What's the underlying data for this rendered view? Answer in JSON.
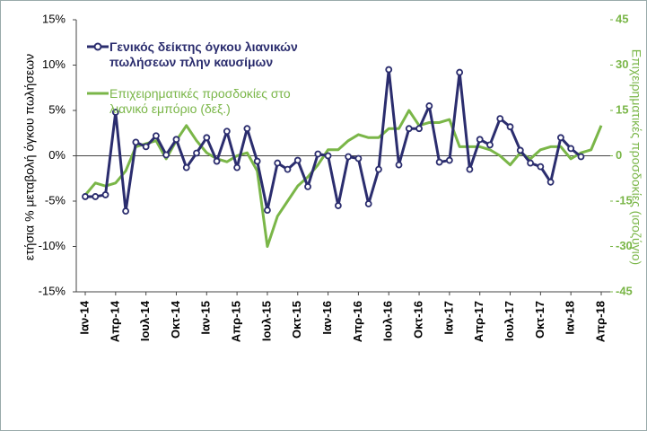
{
  "chart_data": {
    "type": "line",
    "y_label": "ετήσια % μεταβολή όγκου πωλήσεων",
    "y2_label": "Επιχειρηματικές προσδοκίες (ισοζύγιο)",
    "categories": [
      "Ιαν-14",
      null,
      null,
      "Απρ-14",
      null,
      null,
      "Ιουλ-14",
      null,
      null,
      "Οκτ-14",
      null,
      null,
      "Ιαν-15",
      null,
      null,
      "Απρ-15",
      null,
      null,
      "Ιουλ-15",
      null,
      null,
      "Οκτ-15",
      null,
      null,
      "Ιαν-16",
      null,
      null,
      "Απρ-16",
      null,
      null,
      "Ιουλ-16",
      null,
      null,
      "Οκτ-16",
      null,
      null,
      "Ιαν-17",
      null,
      null,
      "Απρ-17",
      null,
      null,
      "Ιουλ-17",
      null,
      null,
      "Οκτ-17",
      null,
      null,
      "Ιαν-18",
      null,
      null,
      "Απρ-18"
    ],
    "ylim": [
      -15,
      15
    ],
    "yticks": [
      {
        "value": -15,
        "label": "-15%"
      },
      {
        "value": -10,
        "label": "-10%"
      },
      {
        "value": -5,
        "label": "-5%"
      },
      {
        "value": 0,
        "label": "0%"
      },
      {
        "value": 5,
        "label": "5%"
      },
      {
        "value": 10,
        "label": "10%"
      },
      {
        "value": 15,
        "label": "15%"
      }
    ],
    "y2lim": [
      -45,
      45
    ],
    "y2ticks": [
      -45,
      -30,
      -15,
      0,
      15,
      30,
      45
    ],
    "legend": "top-left",
    "series": [
      {
        "name": "Γενικός δείκτης όγκου λιανικών πωλήσεων πλην καυσίμων",
        "color": "#2b2d6e",
        "markers": true,
        "values": [
          -4.5,
          -4.5,
          -4.3,
          4.8,
          -6.1,
          1.5,
          1.0,
          2.2,
          0.1,
          1.8,
          -1.3,
          0.3,
          2.0,
          -0.6,
          2.7,
          -1.3,
          3.0,
          -0.6,
          -6.0,
          -0.8,
          -1.5,
          -0.5,
          -3.4,
          0.2,
          0.0,
          -5.5,
          -0.1,
          -0.3,
          -5.3,
          -1.5,
          9.5,
          -1.0,
          3.0,
          3.0,
          5.5,
          -0.7,
          -0.5,
          9.2,
          -1.5,
          1.8,
          1.2,
          4.1,
          3.2,
          0.6,
          -0.8,
          -1.2,
          -2.9,
          2.0,
          0.8,
          -0.1,
          null,
          null
        ]
      },
      {
        "name": "Επιχειρηματικές προσδοκίες στο λιανικό εμπόριο (δεξ.)",
        "color": "#7ab648",
        "axis": "y2",
        "markers": false,
        "values": [
          -13,
          -9,
          -10,
          -9,
          -5,
          3,
          4,
          5,
          -1,
          5,
          10,
          5,
          1,
          -1,
          -2,
          0,
          1,
          -5,
          -30,
          -20,
          -15,
          -10,
          -7,
          -3,
          2,
          2,
          5,
          7,
          6,
          6,
          9,
          9,
          15,
          10,
          11,
          11,
          12,
          3,
          3,
          3,
          2,
          0,
          -3,
          1,
          -1,
          2,
          3,
          3,
          -1,
          1,
          2,
          10
        ]
      }
    ]
  }
}
